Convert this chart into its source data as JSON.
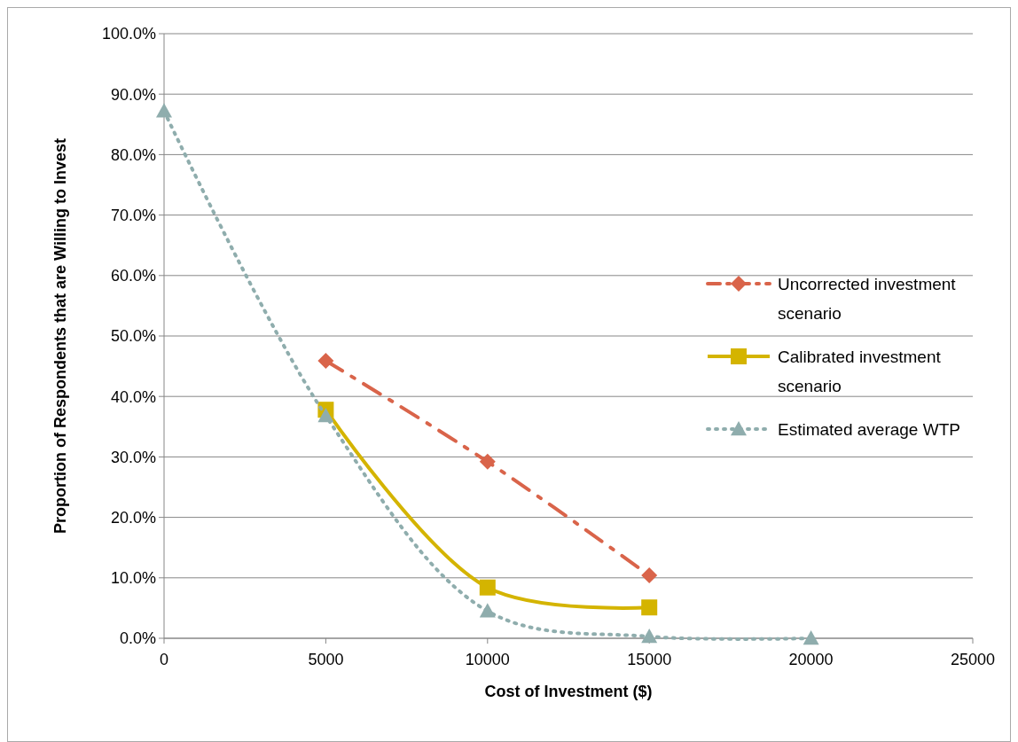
{
  "chart_data": {
    "type": "line",
    "xlabel": "Cost of Investment ($)",
    "ylabel": "Proportion of Respondents that are Willing to Invest",
    "xlim": [
      0,
      25000
    ],
    "xticks": [
      0,
      5000,
      10000,
      15000,
      20000,
      25000
    ],
    "ylim": [
      0,
      100
    ],
    "yticks": [
      {
        "value": 0,
        "label": "0.0%"
      },
      {
        "value": 10,
        "label": "10.0%"
      },
      {
        "value": 20,
        "label": "20.0%"
      },
      {
        "value": 30,
        "label": "30.0%"
      },
      {
        "value": 40,
        "label": "40.0%"
      },
      {
        "value": 50,
        "label": "50.0%"
      },
      {
        "value": 60,
        "label": "60.0%"
      },
      {
        "value": 70,
        "label": "70.0%"
      },
      {
        "value": 80,
        "label": "80.0%"
      },
      {
        "value": 90,
        "label": "90.0%"
      },
      {
        "value": 100,
        "label": "100.0%"
      }
    ],
    "grid": "y",
    "legend": "right",
    "series": [
      {
        "name": "Uncorrected investment scenario",
        "color": "#d9644a",
        "x": [
          5000,
          10000,
          15000
        ],
        "values": [
          45.9,
          29.2,
          10.4
        ],
        "marker": "diamond",
        "line_style": "dashed"
      },
      {
        "name": "Calibrated investment scenario",
        "color": "#d4b400",
        "x": [
          5000,
          10000,
          15000
        ],
        "values": [
          37.8,
          8.4,
          5.1
        ],
        "marker": "square",
        "line_style": "solid"
      },
      {
        "name": "Estimated average WTP",
        "color": "#8fadad",
        "x": [
          0,
          5000,
          10000,
          15000,
          20000
        ],
        "values": [
          87.2,
          36.8,
          4.5,
          0.3,
          0
        ],
        "marker": "triangle",
        "line_style": "dotted"
      }
    ]
  }
}
